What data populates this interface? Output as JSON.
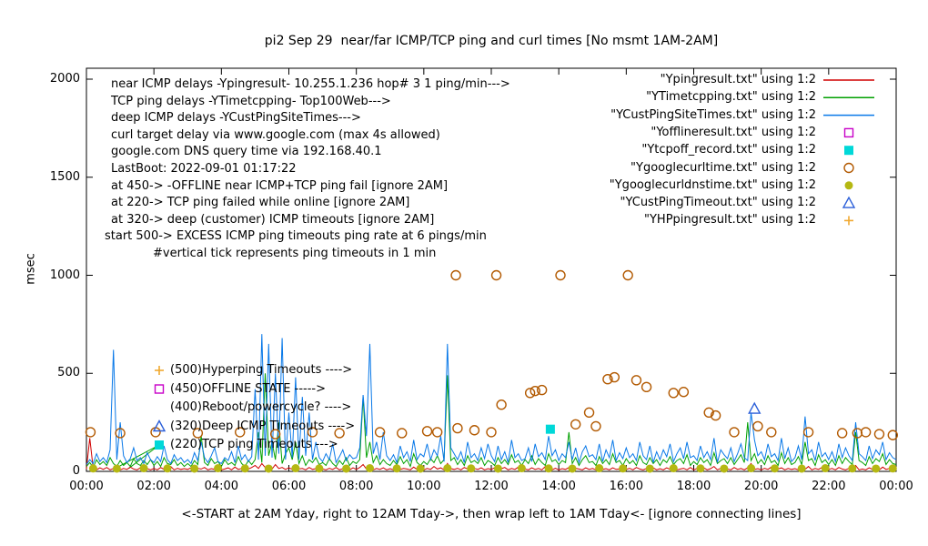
{
  "title": "pi2 Sep 29  near/far ICMP/TCP ping and curl times [No msmt 1AM-2AM]",
  "ylabel": "msec",
  "xlabel": "<-START at 2AM Yday, right to 12AM Tday->, then wrap left to 1AM Tday<- [ignore connecting lines]",
  "annotations": {
    "info": [
      "near ICMP delays -Ypingresult- 10.255.1.236 hop# 3 1 ping/min--->",
      "TCP ping delays -YTimetcpping- Top100Web--->",
      "deep ICMP delays -YCustPingSiteTimes--->",
      "curl target delay via www.google.com (max 4s allowed)",
      "google.com DNS query time via 192.168.40.1",
      "LastBoot: 2022-09-01 01:17:22",
      "at 450-> -OFFLINE near ICMP+TCP ping fail [ignore 2AM]",
      "at 220-> TCP ping failed while online [ignore 2AM]",
      "at 320-> deep (customer) ICMP timeouts [ignore 2AM]",
      "start 500-> EXCESS ICMP ping timeouts ping rate at 6 pings/min",
      "#vertical tick represents ping timeouts in 1 min"
    ],
    "levels": [
      {
        "text": "(500)Hyperping Timeouts ---->",
        "marker": "plus",
        "color": "#f0a830"
      },
      {
        "text": "(450)OFFLINE STATE ----->",
        "marker": "open-square",
        "color": "#c800c8"
      },
      {
        "text": "(400)Reboot/powercycle? ---->",
        "marker": null,
        "color": null
      },
      {
        "text": "(320)Deep ICMP Timeouts ---->",
        "marker": "open-triangle",
        "color": "#2b5fd9"
      },
      {
        "text": "(220)TCP ping Timeouts --->",
        "marker": "filled-square",
        "color": "#00d8d8"
      }
    ]
  },
  "legend": [
    {
      "label": "\"Ypingresult.txt\" using 1:2",
      "sample": "line",
      "color": "#d00000"
    },
    {
      "label": "\"YTimetcpping.txt\" using 1:2",
      "sample": "line",
      "color": "#00a000"
    },
    {
      "label": "\"YCustPingSiteTimes.txt\" using 1:2",
      "sample": "line",
      "color": "#0878e8"
    },
    {
      "label": "\"Yofflineresult.txt\" using 1:2",
      "sample": "open-square",
      "color": "#c800c8"
    },
    {
      "label": "\"Ytcpoff_record.txt\" using 1:2",
      "sample": "filled-square",
      "color": "#00d8d8"
    },
    {
      "label": "\"Ygooglecurltime.txt\" using 1:2",
      "sample": "open-circle",
      "color": "#b25900"
    },
    {
      "label": "\"Ygooglecurldnstime.txt\" using 1:2",
      "sample": "filled-circle",
      "color": "#b5b812"
    },
    {
      "label": "\"YCustPingTimeout.txt\" using 1:2",
      "sample": "open-triangle",
      "color": "#2b5fd9"
    },
    {
      "label": "\"YHPpingresult.txt\" using 1:2",
      "sample": "plus",
      "color": "#f0a830"
    }
  ],
  "chart_data": {
    "type": "line",
    "title": "pi2 Sep 29  near/far ICMP/TCP ping and curl times [No msmt 1AM-2AM]",
    "xlabel_hours": [
      0,
      24
    ],
    "ylim": [
      0,
      2000
    ],
    "x_tick_hours": [
      0,
      2,
      4,
      6,
      8,
      10,
      12,
      14,
      16,
      18,
      20,
      22,
      24
    ],
    "x_tick_labels": [
      "00:00",
      "02:00",
      "04:00",
      "06:00",
      "08:00",
      "10:00",
      "12:00",
      "14:00",
      "16:00",
      "18:00",
      "20:00",
      "22:00",
      "00:00"
    ],
    "y_ticks": [
      0,
      500,
      1000,
      1500,
      2000
    ],
    "connectors": [
      {
        "color": "#00a000",
        "points": [
          [
            0.85,
            15
          ],
          [
            2.16,
            135
          ],
          [
            1.25,
            15
          ]
        ]
      }
    ],
    "series": [
      {
        "name": "Ypingresult",
        "type": "line",
        "color": "#d00000",
        "x0": 0,
        "dx": 0.1,
        "values": [
          12,
          170,
          15,
          8,
          18,
          10,
          20,
          8,
          15,
          10,
          8,
          15,
          10,
          22,
          12,
          8,
          18,
          10,
          14,
          8,
          15,
          8,
          20,
          10,
          12,
          25,
          8,
          16,
          10,
          14,
          10,
          18,
          8,
          15,
          12,
          20,
          8,
          14,
          10,
          16,
          8,
          12,
          18,
          8,
          22,
          10,
          15,
          8,
          12,
          20,
          30,
          15,
          40,
          20,
          25,
          12,
          35,
          15,
          20,
          10,
          18,
          10,
          25,
          12,
          15,
          8,
          20,
          10,
          14,
          8,
          12,
          8,
          16,
          10,
          20,
          8,
          14,
          12,
          8,
          18,
          10,
          20,
          35,
          12,
          25,
          8,
          15,
          10,
          18,
          8,
          14,
          8,
          20,
          10,
          15,
          12,
          8,
          22,
          10,
          16,
          8,
          15,
          10,
          25,
          12,
          18,
          8,
          40,
          14,
          10,
          16,
          8,
          20,
          12,
          8,
          15,
          10,
          18,
          8,
          14,
          10,
          18,
          8,
          14,
          20,
          8,
          15,
          10,
          22,
          8,
          12,
          8,
          18,
          10,
          15,
          8,
          25,
          12,
          8,
          16,
          8,
          14,
          10,
          20,
          8,
          16,
          12,
          8,
          18,
          10,
          15,
          8,
          22,
          10,
          14,
          8,
          18,
          10,
          12,
          8,
          10,
          16,
          8,
          20,
          12,
          8,
          15,
          10,
          18,
          8,
          14,
          8,
          18,
          10,
          22,
          8,
          12,
          16,
          8,
          20,
          8,
          15,
          10,
          18,
          8,
          14,
          25,
          8,
          16,
          10,
          12,
          8,
          20,
          10,
          15,
          8,
          18,
          40,
          10,
          14,
          8,
          16,
          10,
          22,
          8,
          12,
          18,
          8,
          15,
          10,
          14,
          8,
          18,
          10,
          25,
          8,
          15,
          10,
          20,
          8,
          10,
          15,
          8,
          20,
          12,
          8,
          16,
          10,
          30,
          8,
          12,
          8,
          18,
          10,
          14,
          8,
          22,
          10,
          15,
          8,
          10
        ]
      },
      {
        "name": "YTimetcpping",
        "type": "line",
        "color": "#00a000",
        "x0": 0,
        "dx": 0.1,
        "values": [
          25,
          45,
          20,
          60,
          35,
          50,
          30,
          70,
          40,
          25,
          55,
          30,
          45,
          25,
          65,
          40,
          30,
          55,
          35,
          60,
          30,
          50,
          25,
          70,
          40,
          35,
          60,
          30,
          45,
          25,
          40,
          25,
          55,
          35,
          180,
          45,
          30,
          65,
          40,
          50,
          25,
          60,
          35,
          45,
          30,
          75,
          40,
          25,
          55,
          35,
          60,
          200,
          45,
          500,
          80,
          150,
          60,
          250,
          40,
          90,
          120,
          60,
          150,
          40,
          80,
          30,
          60,
          45,
          70,
          35,
          45,
          30,
          65,
          40,
          25,
          55,
          35,
          70,
          30,
          50,
          40,
          60,
          380,
          70,
          150,
          45,
          80,
          35,
          60,
          40,
          30,
          55,
          35,
          75,
          40,
          60,
          25,
          90,
          45,
          30,
          50,
          35,
          65,
          45,
          80,
          40,
          60,
          490,
          55,
          70,
          35,
          60,
          30,
          80,
          45,
          55,
          40,
          70,
          30,
          55,
          45,
          30,
          70,
          40,
          60,
          35,
          85,
          45,
          55,
          30,
          60,
          40,
          80,
          35,
          65,
          45,
          30,
          90,
          50,
          60,
          35,
          55,
          45,
          200,
          40,
          70,
          30,
          60,
          80,
          45,
          50,
          30,
          75,
          40,
          60,
          35,
          90,
          45,
          55,
          30,
          65,
          40,
          55,
          30,
          80,
          45,
          35,
          70,
          40,
          60,
          30,
          60,
          45,
          75,
          35,
          55,
          65,
          40,
          85,
          30,
          50,
          35,
          70,
          45,
          60,
          30,
          95,
          40,
          55,
          65,
          40,
          70,
          35,
          60,
          85,
          45,
          250,
          55,
          90,
          40,
          60,
          35,
          80,
          45,
          55,
          30,
          95,
          40,
          70,
          35,
          45,
          75,
          35,
          150,
          55,
          65,
          30,
          85,
          45,
          60,
          35,
          60,
          30,
          80,
          40,
          70,
          50,
          35,
          200,
          55,
          45,
          30,
          75,
          40,
          65,
          50,
          90,
          35,
          60,
          40,
          35
        ]
      },
      {
        "name": "YCustPingSiteTimes",
        "type": "line",
        "color": "#0878e8",
        "x0": 0,
        "dx": 0.1,
        "values": [
          35,
          60,
          40,
          90,
          50,
          70,
          45,
          110,
          620,
          60,
          250,
          80,
          45,
          65,
          120,
          55,
          70,
          40,
          95,
          60,
          45,
          75,
          50,
          130,
          60,
          40,
          85,
          55,
          70,
          45,
          60,
          40,
          95,
          55,
          150,
          70,
          45,
          80,
          120,
          50,
          40,
          70,
          55,
          100,
          45,
          130,
          60,
          85,
          50,
          75,
          420,
          60,
          700,
          80,
          650,
          70,
          500,
          90,
          680,
          60,
          300,
          70,
          480,
          60,
          380,
          80,
          300,
          60,
          150,
          70,
          50,
          90,
          60,
          140,
          45,
          75,
          110,
          55,
          85,
          65,
          70,
          120,
          390,
          180,
          650,
          90,
          150,
          60,
          200,
          80,
          55,
          85,
          45,
          130,
          70,
          100,
          50,
          160,
          60,
          90,
          75,
          140,
          60,
          110,
          80,
          180,
          50,
          650,
          120,
          90,
          60,
          100,
          45,
          150,
          70,
          90,
          55,
          120,
          65,
          140,
          80,
          50,
          130,
          60,
          100,
          45,
          160,
          70,
          90,
          55,
          65,
          120,
          50,
          140,
          75,
          95,
          60,
          180,
          80,
          110,
          55,
          90,
          70,
          150,
          60,
          120,
          45,
          100,
          130,
          75,
          85,
          60,
          140,
          50,
          110,
          70,
          160,
          55,
          95,
          65,
          120,
          70,
          90,
          55,
          150,
          80,
          60,
          130,
          45,
          100,
          60,
          110,
          75,
          140,
          50,
          90,
          120,
          65,
          150,
          70,
          80,
          55,
          130,
          70,
          100,
          60,
          170,
          45,
          110,
          85,
          65,
          120,
          50,
          90,
          140,
          70,
          55,
          300,
          160,
          80,
          100,
          60,
          140,
          75,
          90,
          55,
          170,
          65,
          120,
          50,
          70,
          130,
          60,
          280,
          90,
          110,
          55,
          150,
          75,
          95,
          60,
          100,
          50,
          140,
          70,
          120,
          80,
          55,
          250,
          90,
          75,
          55,
          130,
          65,
          110,
          85,
          150,
          60,
          95,
          70,
          60
        ]
      },
      {
        "name": "Ygooglecurltime",
        "type": "points",
        "marker": "open-circle",
        "color": "#b25900",
        "points": [
          [
            0.12,
            200
          ],
          [
            1.0,
            195
          ],
          [
            2.05,
            200
          ],
          [
            3.3,
            195
          ],
          [
            4.55,
            200
          ],
          [
            5.6,
            190
          ],
          [
            6.7,
            200
          ],
          [
            7.5,
            195
          ],
          [
            8.7,
            200
          ],
          [
            9.35,
            195
          ],
          [
            10.1,
            205
          ],
          [
            10.4,
            200
          ],
          [
            10.95,
            1000
          ],
          [
            11.0,
            220
          ],
          [
            11.5,
            210
          ],
          [
            12.0,
            200
          ],
          [
            12.15,
            1000
          ],
          [
            12.3,
            340
          ],
          [
            13.15,
            400
          ],
          [
            13.3,
            410
          ],
          [
            13.5,
            415
          ],
          [
            14.05,
            1000
          ],
          [
            14.5,
            240
          ],
          [
            14.9,
            300
          ],
          [
            15.1,
            230
          ],
          [
            15.45,
            470
          ],
          [
            15.65,
            480
          ],
          [
            16.05,
            1000
          ],
          [
            16.3,
            465
          ],
          [
            16.6,
            430
          ],
          [
            17.4,
            400
          ],
          [
            17.7,
            405
          ],
          [
            18.45,
            300
          ],
          [
            18.65,
            285
          ],
          [
            19.2,
            200
          ],
          [
            19.9,
            230
          ],
          [
            20.3,
            200
          ],
          [
            21.4,
            200
          ],
          [
            22.4,
            195
          ],
          [
            22.85,
            195
          ],
          [
            23.1,
            200
          ],
          [
            23.5,
            190
          ],
          [
            23.9,
            185
          ]
        ]
      },
      {
        "name": "Ygooglecurldnstime",
        "type": "points",
        "marker": "filled-circle",
        "color": "#b5b812",
        "points": [
          [
            0.2,
            15
          ],
          [
            0.9,
            14
          ],
          [
            1.7,
            16
          ],
          [
            2.4,
            15
          ],
          [
            3.2,
            14
          ],
          [
            3.9,
            16
          ],
          [
            4.7,
            15
          ],
          [
            5.4,
            14
          ],
          [
            6.2,
            16
          ],
          [
            6.9,
            15
          ],
          [
            7.7,
            14
          ],
          [
            8.4,
            16
          ],
          [
            9.2,
            15
          ],
          [
            9.9,
            14
          ],
          [
            10.7,
            16
          ],
          [
            11.4,
            15
          ],
          [
            12.2,
            14
          ],
          [
            12.9,
            16
          ],
          [
            13.7,
            15
          ],
          [
            14.4,
            14
          ],
          [
            15.2,
            16
          ],
          [
            15.9,
            15
          ],
          [
            16.7,
            14
          ],
          [
            17.4,
            16
          ],
          [
            18.2,
            15
          ],
          [
            18.9,
            14
          ],
          [
            19.7,
            16
          ],
          [
            20.4,
            15
          ],
          [
            21.2,
            14
          ],
          [
            21.9,
            16
          ],
          [
            22.7,
            15
          ],
          [
            23.4,
            14
          ],
          [
            23.9,
            15
          ]
        ]
      },
      {
        "name": "Ytcpoff_record",
        "type": "points",
        "marker": "filled-square",
        "color": "#00d8d8",
        "points": [
          [
            13.75,
            215
          ]
        ]
      },
      {
        "name": "YCustPingTimeout",
        "type": "points",
        "marker": "open-triangle",
        "color": "#2b5fd9",
        "points": [
          [
            19.8,
            320
          ]
        ]
      },
      {
        "name": "Yofflineresult",
        "type": "points",
        "marker": "open-square",
        "color": "#c800c8",
        "points": []
      },
      {
        "name": "YHPpingresult",
        "type": "points",
        "marker": "plus",
        "color": "#f0a830",
        "points": []
      }
    ]
  }
}
